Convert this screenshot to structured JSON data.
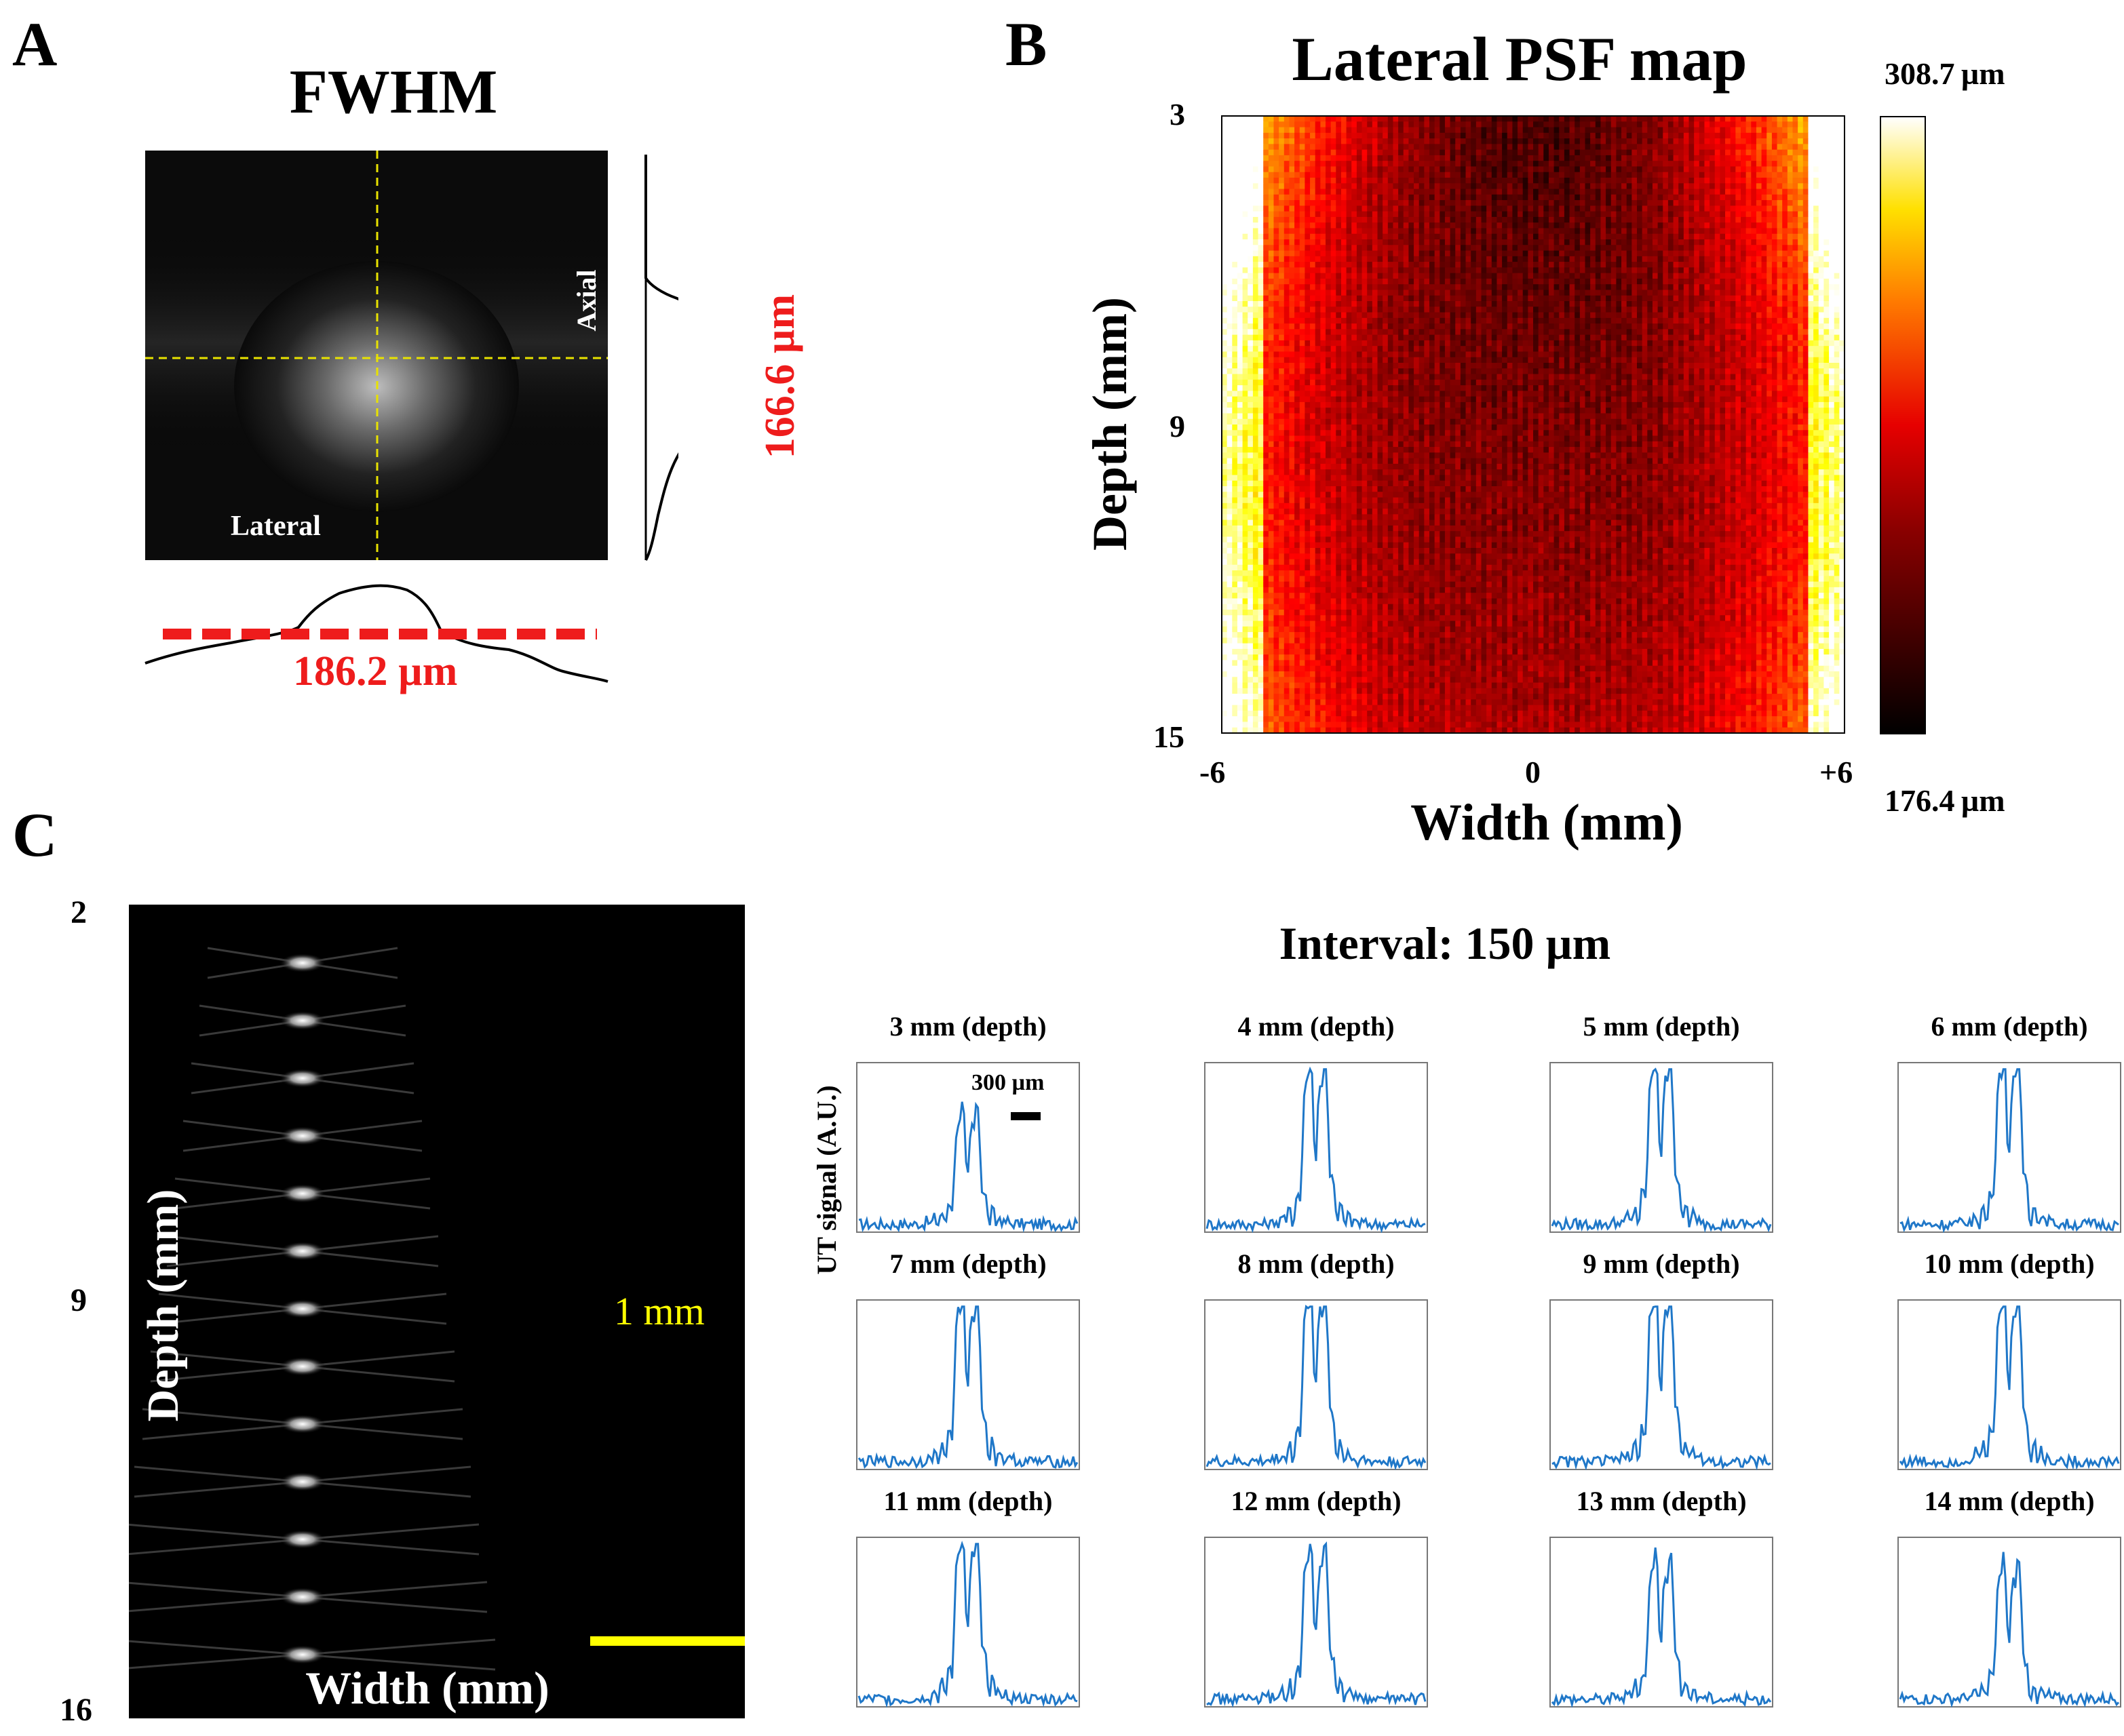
{
  "panels": {
    "a_label": "A",
    "b_label": "B",
    "c_label": "C"
  },
  "panel_a": {
    "title": "FWHM",
    "axial_label": "Axial",
    "lateral_label": "Lateral",
    "axial_fwhm": "166.6 µm",
    "lateral_fwhm": "186.2 µm",
    "colors": {
      "guide": "#e8e200",
      "fwhm_line": "#ee1c1c"
    }
  },
  "panel_b": {
    "title": "Lateral PSF map",
    "ylabel": "Depth (mm)",
    "xlabel": "Width (mm)",
    "y_ticks": [
      "3",
      "9",
      "15"
    ],
    "x_ticks": [
      "-6",
      "0",
      "+6"
    ],
    "colorbar_max": "308.7 µm",
    "colorbar_min": "176.4 µm",
    "colormap": "hot"
  },
  "panel_c_image": {
    "y_ticks": [
      "2",
      "9",
      "16"
    ],
    "ylabel": "Depth (mm)",
    "xlabel": "Width (mm)",
    "scalebar_label": "1 mm",
    "scalebar_color": "#ffff00",
    "point_targets": 13
  },
  "panel_c_profiles": {
    "title": "Interval: 150 µm",
    "ylabel": "UT signal (A.U.)",
    "scalebar_label": "300 µm",
    "line_color": "#1f77c8",
    "subplots": [
      {
        "label": "3 mm (depth)",
        "peak": 0.62
      },
      {
        "label": "4 mm (depth)",
        "peak": 0.88
      },
      {
        "label": "5 mm (depth)",
        "peak": 0.9
      },
      {
        "label": "6 mm (depth)",
        "peak": 0.92
      },
      {
        "label": "7 mm (depth)",
        "peak": 0.93
      },
      {
        "label": "8 mm (depth)",
        "peak": 0.95
      },
      {
        "label": "9 mm (depth)",
        "peak": 0.95
      },
      {
        "label": "10 mm (depth)",
        "peak": 0.93
      },
      {
        "label": "11 mm (depth)",
        "peak": 0.9
      },
      {
        "label": "12 mm (depth)",
        "peak": 0.83
      },
      {
        "label": "13 mm (depth)",
        "peak": 0.78
      },
      {
        "label": "14 mm (depth)",
        "peak": 0.74
      }
    ]
  }
}
